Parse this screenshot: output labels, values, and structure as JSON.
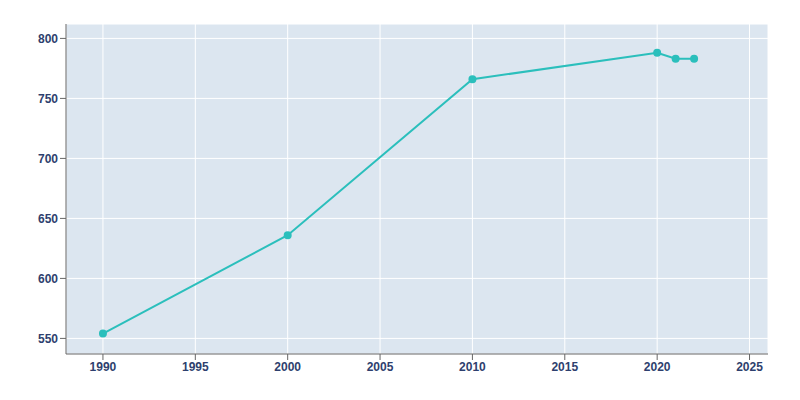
{
  "chart_data": {
    "type": "line",
    "x": [
      1990,
      2000,
      2010,
      2020,
      2021,
      2022
    ],
    "values": [
      554,
      636,
      766,
      788,
      783,
      783
    ],
    "color": "#2bbfbc",
    "marker": "circle",
    "xlim": [
      1988,
      2026
    ],
    "ylim": [
      537,
      812
    ],
    "xticks": [
      1990,
      1995,
      2000,
      2005,
      2010,
      2015,
      2020,
      2025
    ],
    "yticks": [
      550,
      600,
      650,
      700,
      750,
      800
    ],
    "grid": true
  }
}
